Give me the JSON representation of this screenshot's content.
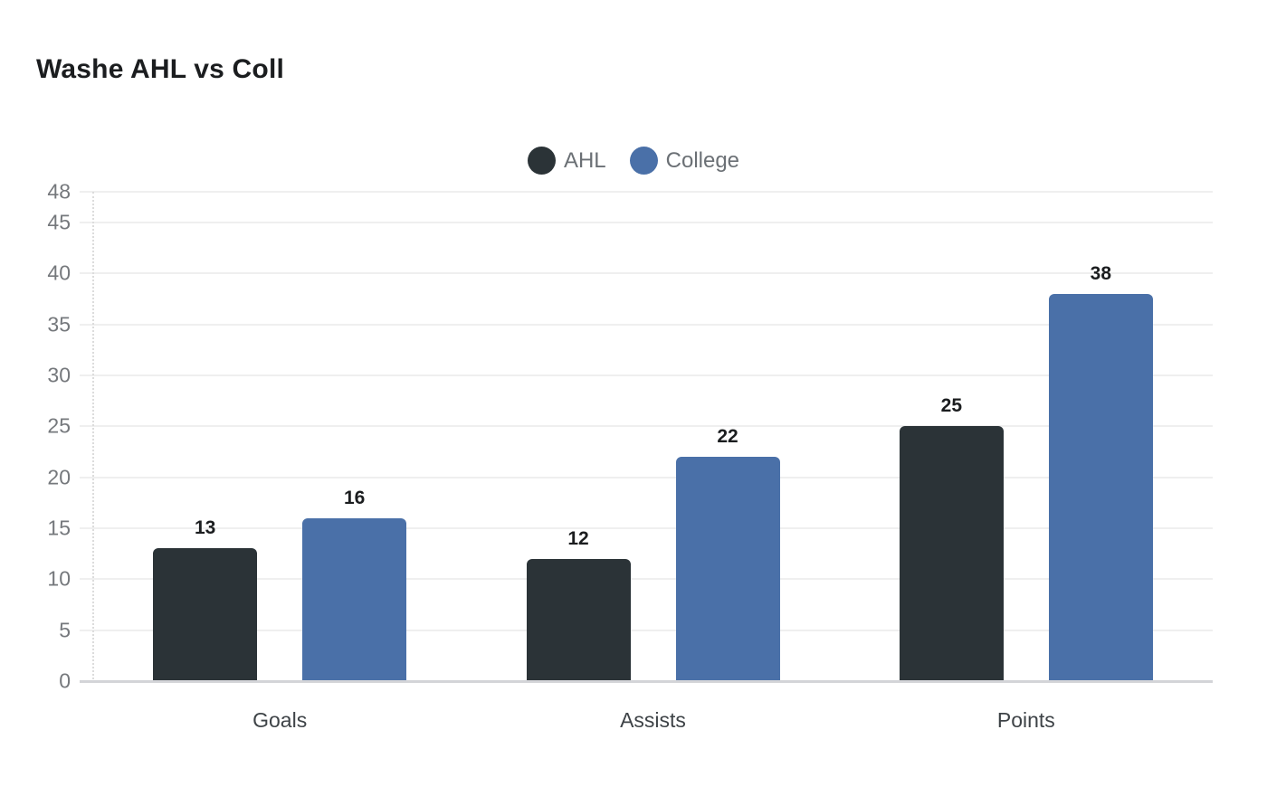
{
  "title": "Washe AHL vs Coll",
  "legend": {
    "items": [
      {
        "label": "AHL",
        "color": "#2b3337"
      },
      {
        "label": "College",
        "color": "#4a70a8"
      }
    ]
  },
  "style": {
    "grid_color": "#efefef",
    "axis_line_color": "#d3d4d8",
    "background": "#ffffff"
  },
  "chart_data": {
    "type": "bar",
    "title": "Washe AHL vs Coll",
    "categories": [
      "Goals",
      "Assists",
      "Points"
    ],
    "series": [
      {
        "name": "AHL",
        "color": "#2b3337",
        "values": [
          13,
          12,
          25
        ]
      },
      {
        "name": "College",
        "color": "#4a70a8",
        "values": [
          16,
          22,
          38
        ]
      }
    ],
    "xlabel": "",
    "ylabel": "",
    "ylim": [
      0,
      48
    ],
    "yticks": [
      0,
      5,
      10,
      15,
      20,
      25,
      30,
      35,
      40,
      45,
      48
    ],
    "grid": true,
    "legend_position": "top-center",
    "value_labels": true
  }
}
